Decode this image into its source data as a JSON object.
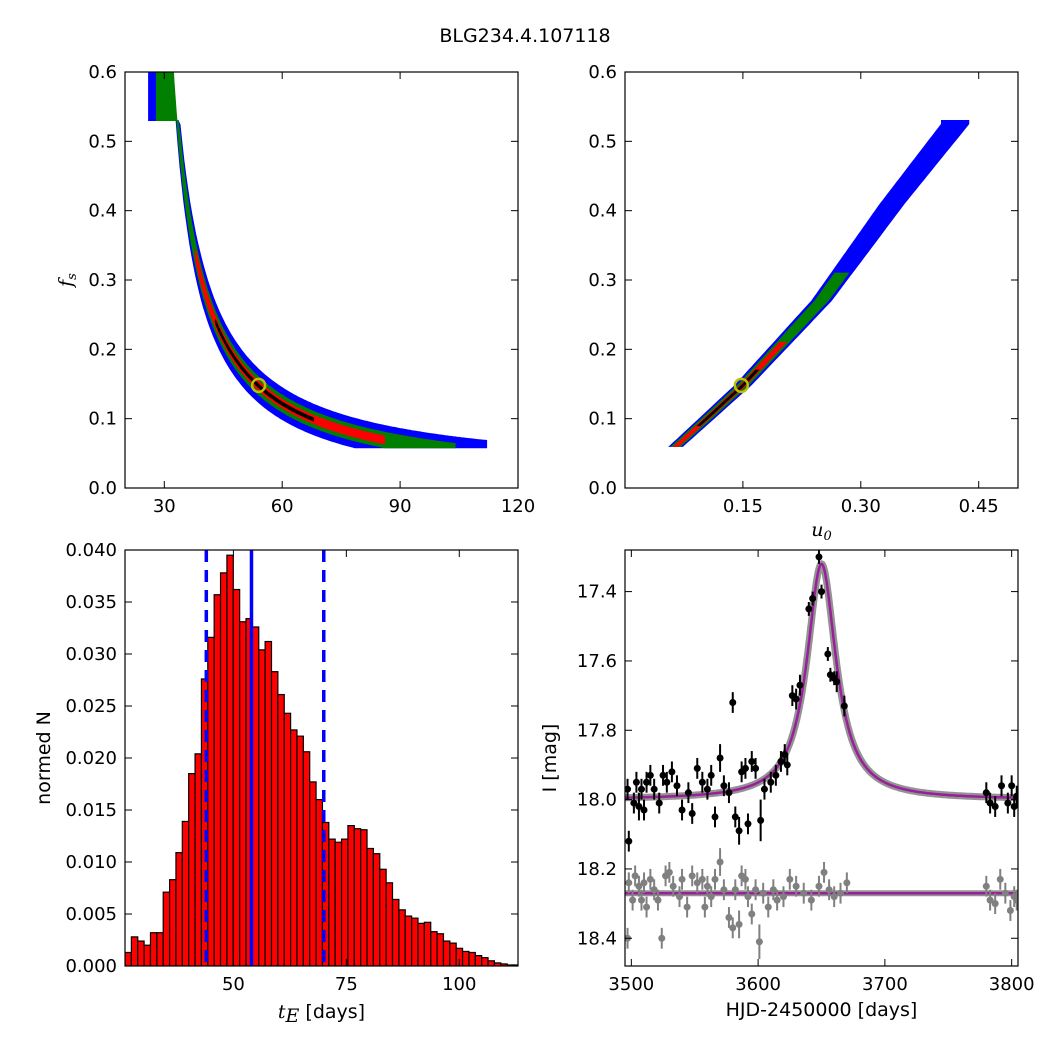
{
  "figure": {
    "title": "BLG234.4.107118"
  },
  "chart_data": [
    {
      "id": "ts_vs_fs",
      "type": "heatmap",
      "xlabel": "",
      "ylabel": "f_s",
      "ylabel_main": "f",
      "ylabel_sub": "s",
      "xlim": [
        20,
        120
      ],
      "ylim": [
        0.0,
        0.6
      ],
      "xticks": [
        30,
        60,
        90,
        120
      ],
      "yticks": [
        0.0,
        0.1,
        0.2,
        0.3,
        0.4,
        0.5,
        0.6
      ],
      "xtick_labels": [
        "30",
        "60",
        "90",
        "120"
      ],
      "ytick_labels": [
        "0.0",
        "0.1",
        "0.2",
        "0.3",
        "0.4",
        "0.5",
        "0.6"
      ],
      "curve": {
        "form": "fs = k / (tE - t0)",
        "k": 4.2,
        "t0": 25.5
      },
      "bands": [
        {
          "name": "outer",
          "color": "#0000ff",
          "x_range": [
            26,
            112
          ],
          "halfwidth": 0.03
        },
        {
          "name": "middle",
          "color": "#007f00",
          "x_range": [
            28,
            104
          ],
          "halfwidth": 0.016
        },
        {
          "name": "inner",
          "color": "#ff0000",
          "x_range": [
            38,
            86
          ],
          "halfwidth": 0.008
        },
        {
          "name": "core",
          "color": "#000000",
          "x_range": [
            43,
            68
          ],
          "halfwidth": 0.003
        }
      ],
      "best_fit": {
        "x": 54,
        "y": 0.148,
        "color": "#bfbf00"
      }
    },
    {
      "id": "u0_vs_fs",
      "type": "heatmap",
      "xlabel": "u_0",
      "xlabel_main": "u",
      "xlabel_sub": "0",
      "ylabel": "",
      "xlim": [
        0.0,
        0.5
      ],
      "ylim": [
        0.0,
        0.6
      ],
      "xticks": [
        0.15,
        0.3,
        0.45
      ],
      "yticks": [
        0.0,
        0.1,
        0.2,
        0.3,
        0.4,
        0.5,
        0.6
      ],
      "xtick_labels": [
        "0.15",
        "0.30",
        "0.45"
      ],
      "ytick_labels": [
        "0.0",
        "0.1",
        "0.2",
        "0.3",
        "0.4",
        "0.5",
        "0.6"
      ],
      "line": {
        "form": "fs = a*u0 + b*u0^2 + c",
        "points": [
          [
            0.065,
            0.06
          ],
          [
            0.15,
            0.148
          ],
          [
            0.25,
            0.27
          ],
          [
            0.34,
            0.41
          ],
          [
            0.42,
            0.525
          ]
        ]
      },
      "bands": [
        {
          "name": "outer",
          "color": "#0000ff",
          "y_range": [
            0.06,
            0.53
          ],
          "halfwidth": 0.012
        },
        {
          "name": "middle",
          "color": "#007f00",
          "y_range": [
            0.06,
            0.31
          ],
          "halfwidth": 0.008
        },
        {
          "name": "inner",
          "color": "#ff0000",
          "y_range": [
            0.06,
            0.21
          ],
          "halfwidth": 0.004
        },
        {
          "name": "core",
          "color": "#000000",
          "y_range": [
            0.09,
            0.17
          ],
          "halfwidth": 0.002
        }
      ],
      "best_fit": {
        "x": 0.148,
        "y": 0.148,
        "color": "#bfbf00"
      }
    },
    {
      "id": "tE_histogram",
      "type": "bar",
      "xlabel": "[days]",
      "xlabel_main": "t",
      "xlabel_sub": "E",
      "ylabel": "normed N",
      "xlim": [
        26,
        113
      ],
      "ylim": [
        0.0,
        0.04
      ],
      "xticks": [
        50,
        75,
        100
      ],
      "yticks": [
        0.0,
        0.005,
        0.01,
        0.015,
        0.02,
        0.025,
        0.03,
        0.035,
        0.04
      ],
      "xtick_labels": [
        "50",
        "75",
        "100"
      ],
      "ytick_labels": [
        "0.000",
        "0.005",
        "0.010",
        "0.015",
        "0.020",
        "0.025",
        "0.030",
        "0.035",
        "0.040"
      ],
      "bin_start": 26,
      "bin_width": 1.41,
      "bar_color": "#ff0000",
      "values": [
        0.0013,
        0.0028,
        0.0024,
        0.002,
        0.0032,
        0.0032,
        0.0071,
        0.0083,
        0.0109,
        0.0139,
        0.0185,
        0.0204,
        0.0276,
        0.0316,
        0.0357,
        0.0378,
        0.0395,
        0.0362,
        0.0331,
        0.0334,
        0.0326,
        0.0304,
        0.0312,
        0.0283,
        0.0261,
        0.0243,
        0.0227,
        0.0221,
        0.0206,
        0.0177,
        0.016,
        0.0138,
        0.0122,
        0.0119,
        0.0122,
        0.0135,
        0.0132,
        0.0131,
        0.0113,
        0.0108,
        0.0093,
        0.008,
        0.0064,
        0.0054,
        0.0048,
        0.0046,
        0.0041,
        0.0042,
        0.0033,
        0.0031,
        0.0024,
        0.0022,
        0.0017,
        0.0014,
        0.0013,
        0.001,
        0.0008,
        0.0005,
        0.0003,
        0.0002,
        0.0001,
        0.0001
      ],
      "vlines": [
        {
          "x": 54,
          "style": "solid",
          "color": "#0000ff"
        },
        {
          "x": 44,
          "style": "dashed",
          "color": "#0000ff"
        },
        {
          "x": 70,
          "style": "dashed",
          "color": "#0000ff"
        }
      ]
    },
    {
      "id": "lightcurve",
      "type": "scatter",
      "xlabel": "HJD-2450000 [days]",
      "ylabel": "I [mag]",
      "xlim": [
        3495,
        3805
      ],
      "ylim": [
        18.48,
        17.28
      ],
      "xticks": [
        3500,
        3600,
        3700,
        3800
      ],
      "yticks": [
        17.4,
        17.6,
        17.8,
        18.0,
        18.2,
        18.4
      ],
      "xtick_labels": [
        "3500",
        "3600",
        "3700",
        "3800"
      ],
      "ytick_labels": [
        "17.4",
        "17.6",
        "17.8",
        "18.0",
        "18.2",
        "18.4"
      ],
      "model": {
        "color": "#9a1f9a",
        "baseline": 18.0,
        "peak_time": 3650,
        "peak_mag": 17.32,
        "width": 14
      },
      "residual_baseline": 18.27,
      "series": [
        {
          "name": "",
          "color": "#000000",
          "points": [
            [
              3497,
              17.97,
              0.03
            ],
            [
              3498,
              18.12,
              0.03
            ],
            [
              3502,
              18.01,
              0.03
            ],
            [
              3504,
              17.95,
              0.03
            ],
            [
              3506,
              18.02,
              0.04
            ],
            [
              3508,
              17.97,
              0.03
            ],
            [
              3510,
              18.03,
              0.03
            ],
            [
              3512,
              17.95,
              0.03
            ],
            [
              3515,
              17.93,
              0.03
            ],
            [
              3518,
              17.97,
              0.03
            ],
            [
              3522,
              18.01,
              0.03
            ],
            [
              3525,
              17.93,
              0.03
            ],
            [
              3528,
              17.95,
              0.03
            ],
            [
              3532,
              17.92,
              0.03
            ],
            [
              3536,
              17.96,
              0.03
            ],
            [
              3540,
              18.03,
              0.03
            ],
            [
              3545,
              17.98,
              0.03
            ],
            [
              3548,
              18.04,
              0.03
            ],
            [
              3552,
              17.91,
              0.03
            ],
            [
              3556,
              17.95,
              0.03
            ],
            [
              3560,
              17.97,
              0.03
            ],
            [
              3563,
              17.93,
              0.03
            ],
            [
              3566,
              18.05,
              0.03
            ],
            [
              3570,
              17.88,
              0.04
            ],
            [
              3573,
              17.96,
              0.03
            ],
            [
              3577,
              17.98,
              0.03
            ],
            [
              3580,
              17.72,
              0.03
            ],
            [
              3582,
              18.05,
              0.03
            ],
            [
              3585,
              18.09,
              0.04
            ],
            [
              3587,
              17.92,
              0.03
            ],
            [
              3590,
              17.91,
              0.03
            ],
            [
              3592,
              18.07,
              0.03
            ],
            [
              3595,
              17.89,
              0.03
            ],
            [
              3598,
              17.91,
              0.03
            ],
            [
              3602,
              18.06,
              0.06
            ],
            [
              3605,
              17.97,
              0.03
            ],
            [
              3610,
              17.95,
              0.03
            ],
            [
              3614,
              17.93,
              0.03
            ],
            [
              3618,
              17.89,
              0.03
            ],
            [
              3621,
              17.87,
              0.03
            ],
            [
              3623,
              17.9,
              0.03
            ],
            [
              3627,
              17.7,
              0.03
            ],
            [
              3630,
              17.71,
              0.03
            ],
            [
              3633,
              17.67,
              0.03
            ],
            [
              3640,
              17.45,
              0.02
            ],
            [
              3643,
              17.42,
              0.02
            ],
            [
              3648,
              17.3,
              0.02
            ],
            [
              3650,
              17.4,
              0.02
            ],
            [
              3655,
              17.58,
              0.02
            ],
            [
              3657,
              17.64,
              0.02
            ],
            [
              3660,
              17.65,
              0.02
            ],
            [
              3662,
              17.66,
              0.03
            ],
            [
              3668,
              17.73,
              0.03
            ],
            [
              3780,
              17.98,
              0.03
            ],
            [
              3783,
              18.01,
              0.03
            ],
            [
              3787,
              18.02,
              0.03
            ],
            [
              3792,
              17.96,
              0.03
            ],
            [
              3797,
              18.01,
              0.03
            ],
            [
              3800,
              17.96,
              0.03
            ],
            [
              3802,
              18.02,
              0.03
            ],
            [
              3804,
              17.99,
              0.03
            ]
          ]
        },
        {
          "name": "",
          "color": "#808080",
          "points": [
            [
              3497,
              18.4,
              0.03
            ],
            [
              3498,
              18.24,
              0.03
            ],
            [
              3501,
              18.29,
              0.03
            ],
            [
              3503,
              18.22,
              0.03
            ],
            [
              3506,
              18.25,
              0.03
            ],
            [
              3508,
              18.29,
              0.03
            ],
            [
              3510,
              18.24,
              0.03
            ],
            [
              3512,
              18.31,
              0.03
            ],
            [
              3515,
              18.23,
              0.03
            ],
            [
              3518,
              18.26,
              0.03
            ],
            [
              3521,
              18.29,
              0.03
            ],
            [
              3524,
              18.4,
              0.03
            ],
            [
              3527,
              18.22,
              0.03
            ],
            [
              3530,
              18.21,
              0.03
            ],
            [
              3533,
              18.25,
              0.03
            ],
            [
              3538,
              18.28,
              0.03
            ],
            [
              3540,
              18.23,
              0.03
            ],
            [
              3544,
              18.31,
              0.03
            ],
            [
              3548,
              18.22,
              0.03
            ],
            [
              3552,
              18.24,
              0.03
            ],
            [
              3556,
              18.23,
              0.03
            ],
            [
              3558,
              18.31,
              0.03
            ],
            [
              3560,
              18.25,
              0.03
            ],
            [
              3563,
              18.28,
              0.03
            ],
            [
              3566,
              18.23,
              0.03
            ],
            [
              3570,
              18.18,
              0.04
            ],
            [
              3573,
              18.26,
              0.03
            ],
            [
              3577,
              18.34,
              0.03
            ],
            [
              3580,
              18.37,
              0.03
            ],
            [
              3582,
              18.26,
              0.03
            ],
            [
              3585,
              18.36,
              0.04
            ],
            [
              3587,
              18.22,
              0.03
            ],
            [
              3590,
              18.23,
              0.03
            ],
            [
              3592,
              18.28,
              0.03
            ],
            [
              3595,
              18.33,
              0.03
            ],
            [
              3598,
              18.26,
              0.03
            ],
            [
              3601,
              18.41,
              0.05
            ],
            [
              3604,
              18.27,
              0.03
            ],
            [
              3608,
              18.31,
              0.03
            ],
            [
              3612,
              18.26,
              0.03
            ],
            [
              3615,
              18.29,
              0.03
            ],
            [
              3620,
              18.28,
              0.03
            ],
            [
              3625,
              18.23,
              0.03
            ],
            [
              3630,
              18.25,
              0.03
            ],
            [
              3636,
              18.27,
              0.03
            ],
            [
              3642,
              18.29,
              0.03
            ],
            [
              3648,
              18.25,
              0.03
            ],
            [
              3652,
              18.21,
              0.03
            ],
            [
              3656,
              18.26,
              0.03
            ],
            [
              3660,
              18.28,
              0.03
            ],
            [
              3665,
              18.27,
              0.03
            ],
            [
              3670,
              18.24,
              0.03
            ],
            [
              3780,
              18.25,
              0.03
            ],
            [
              3783,
              18.29,
              0.03
            ],
            [
              3787,
              18.3,
              0.03
            ],
            [
              3791,
              18.23,
              0.03
            ],
            [
              3795,
              18.27,
              0.03
            ],
            [
              3799,
              18.32,
              0.03
            ],
            [
              3802,
              18.28,
              0.03
            ],
            [
              3804,
              18.29,
              0.03
            ]
          ]
        }
      ]
    }
  ]
}
